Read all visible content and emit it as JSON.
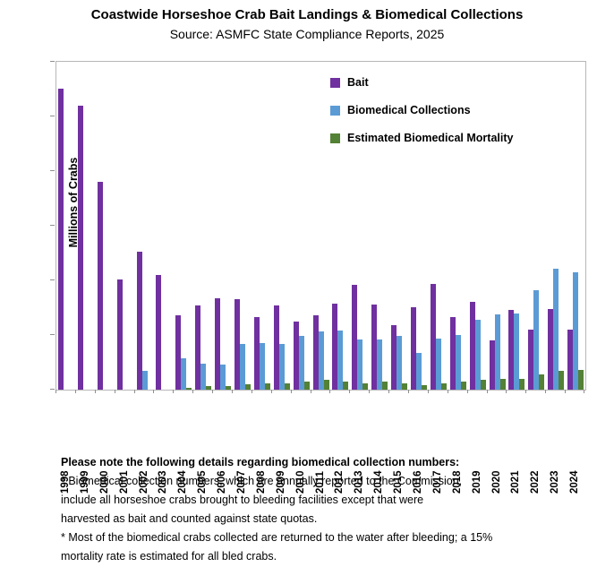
{
  "title": "Coastwide Horseshoe Crab Bait Landings & Biomedical Collections",
  "subtitle": "Source: ASMFC State Compliance Reports, 2025",
  "chart_data": {
    "type": "bar",
    "title": "Coastwide Horseshoe Crab Bait Landings & Biomedical Collections",
    "subtitle": "Source: ASMFC State Compliance Reports, 2025",
    "categories": [
      "1998",
      "1999",
      "2000",
      "2001",
      "2002",
      "2003",
      "2004",
      "2005",
      "2006",
      "2007",
      "2008",
      "2009",
      "2010",
      "2011",
      "2012",
      "2013",
      "2014",
      "2015",
      "2016",
      "2017",
      "2018",
      "2019",
      "2020",
      "2021",
      "2022",
      "2023",
      "2024"
    ],
    "series": [
      {
        "name": "Bait",
        "color": "#7030A0",
        "values": [
          2.75,
          2.6,
          1.9,
          1.01,
          1.26,
          1.05,
          0.68,
          0.77,
          0.84,
          0.83,
          0.66,
          0.77,
          0.62,
          0.68,
          0.79,
          0.96,
          0.78,
          0.59,
          0.75,
          0.97,
          0.66,
          0.8,
          0.45,
          0.73,
          0.55,
          0.74,
          0.55
        ]
      },
      {
        "name": "Biomedical Collections",
        "color": "#5B9BD5",
        "values": [
          null,
          null,
          null,
          null,
          0.17,
          null,
          0.29,
          0.24,
          0.23,
          0.42,
          0.43,
          0.42,
          0.49,
          0.53,
          0.54,
          0.46,
          0.46,
          0.49,
          0.34,
          0.47,
          0.5,
          0.64,
          0.69,
          0.7,
          0.91,
          1.11,
          1.07
        ]
      },
      {
        "name": "Estimated Biomedical Mortality",
        "color": "#538135",
        "values": [
          null,
          null,
          null,
          null,
          null,
          null,
          0.02,
          0.03,
          0.03,
          0.05,
          0.06,
          0.06,
          0.07,
          0.09,
          0.07,
          0.06,
          0.07,
          0.06,
          0.04,
          0.06,
          0.07,
          0.09,
          0.1,
          0.1,
          0.14,
          0.17,
          0.18
        ]
      }
    ],
    "xlabel": "",
    "ylabel": "Millions of Crabs",
    "ylim": [
      0,
      3.0
    ],
    "yticks": [
      "0.0",
      "0.5",
      "1.0",
      "1.5",
      "2.0",
      "2.5",
      "3.0"
    ],
    "grid": false,
    "legend_position": "inside-top-right"
  },
  "footnote": {
    "heading": "Please note the following details regarding biomedical collection numbers:",
    "body": "* Biomedical collection numbers, which are annually reported to the Commission,\ninclude all horseshoe crabs brought to bleeding facilities except that were\nharvested as bait and counted against state quotas.\n* Most of the biomedical crabs collected are returned to the water after bleeding; a 15%\nmortality rate is estimated for all bled crabs."
  }
}
